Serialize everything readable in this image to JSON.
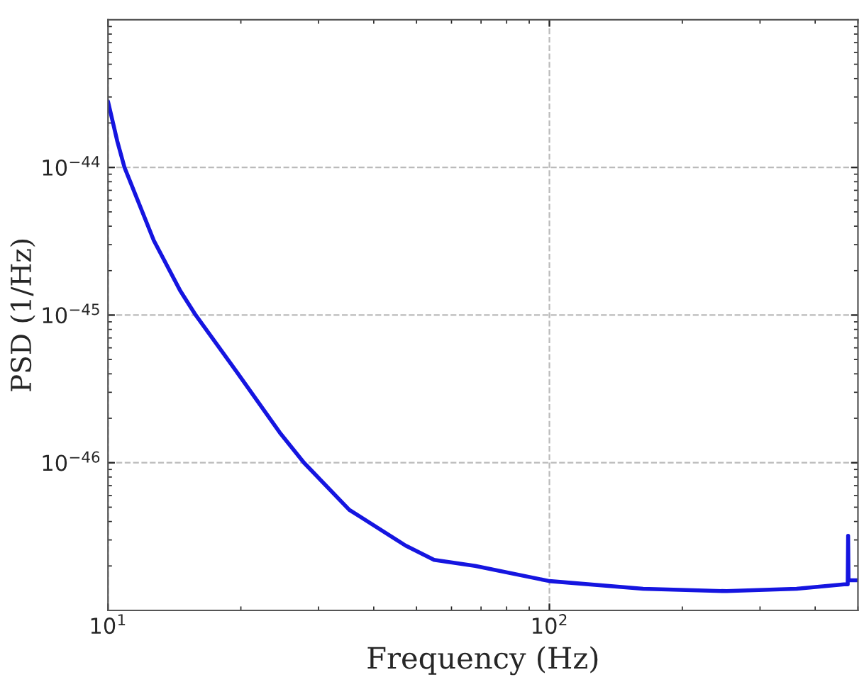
{
  "chart_data": {
    "type": "line",
    "xlabel": "Frequency (Hz)",
    "ylabel": "PSD (1/Hz)",
    "log": "xy",
    "grid": true,
    "line_style": "solid",
    "marker": "none",
    "xlim": [
      10,
      500
    ],
    "ylim": [
      1e-47,
      1e-43
    ],
    "xticks": [
      {
        "value": 10,
        "label": "10$^{1}$"
      },
      {
        "value": 100,
        "label": "10$^{2}$"
      }
    ],
    "yticks": [
      {
        "value": 1e-46,
        "label": "10$^{−46}$"
      },
      {
        "value": 1e-45,
        "label": "10$^{−45}$"
      },
      {
        "value": 1e-44,
        "label": "10$^{−44}$"
      }
    ],
    "series": [
      {
        "color": "#1515e0",
        "x": [
          10,
          10.5,
          10.9,
          12.7,
          14.6,
          15.8,
          19.6,
          24.5,
          27.8,
          35.2,
          47.2,
          54.8,
          67.9,
          100,
          163,
          252,
          363,
          465,
          474,
          475,
          476,
          500
        ],
        "values": [
          2.8e-44,
          1.5e-44,
          1e-44,
          3.2e-45,
          1.45e-45,
          1e-45,
          4.1e-46,
          1.6e-46,
          1e-46,
          4.8e-47,
          2.75e-47,
          2.2e-47,
          2e-47,
          1.58e-47,
          1.4e-47,
          1.35e-47,
          1.4e-47,
          1.5e-47,
          1.5e-47,
          3.2e-47,
          1.6e-47,
          1.6e-47
        ]
      }
    ]
  }
}
